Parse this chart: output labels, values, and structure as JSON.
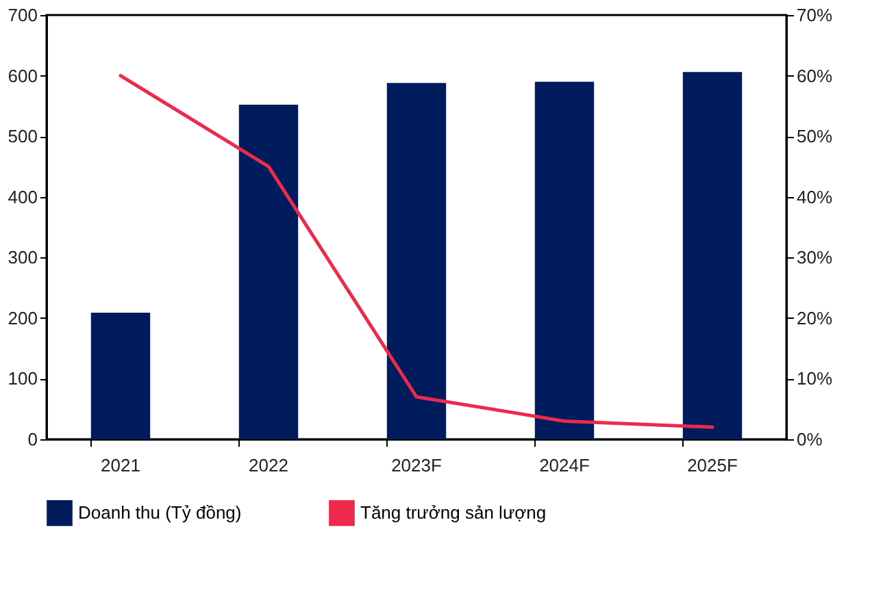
{
  "chart_data": {
    "type": "bar",
    "categories": [
      "2021",
      "2022",
      "2023F",
      "2024F",
      "2025F"
    ],
    "series": [
      {
        "name": "Doanh thu (Tỷ đồng)",
        "color": "#001c5c",
        "values": [
          209,
          552,
          588,
          590,
          606
        ]
      },
      {
        "name": "Tăng trưởng sản lượng",
        "type": "line",
        "axis": "y2",
        "color": "#ee2a4c",
        "values": [
          60,
          45,
          7,
          3,
          2
        ]
      }
    ],
    "ylim": [
      0,
      700
    ],
    "yticks": [
      0,
      100,
      200,
      300,
      400,
      500,
      600,
      700
    ],
    "y2lim": [
      0,
      70
    ],
    "y2ticks": [
      {
        "value": 0,
        "label": "0%"
      },
      {
        "value": 10,
        "label": "10%"
      },
      {
        "value": 20,
        "label": "20%"
      },
      {
        "value": 30,
        "label": "30%"
      },
      {
        "value": 40,
        "label": "40%"
      },
      {
        "value": 50,
        "label": "50%"
      },
      {
        "value": 60,
        "label": "60%"
      },
      {
        "value": 70,
        "label": "70%"
      }
    ],
    "grid": false,
    "legend": "bottom"
  }
}
